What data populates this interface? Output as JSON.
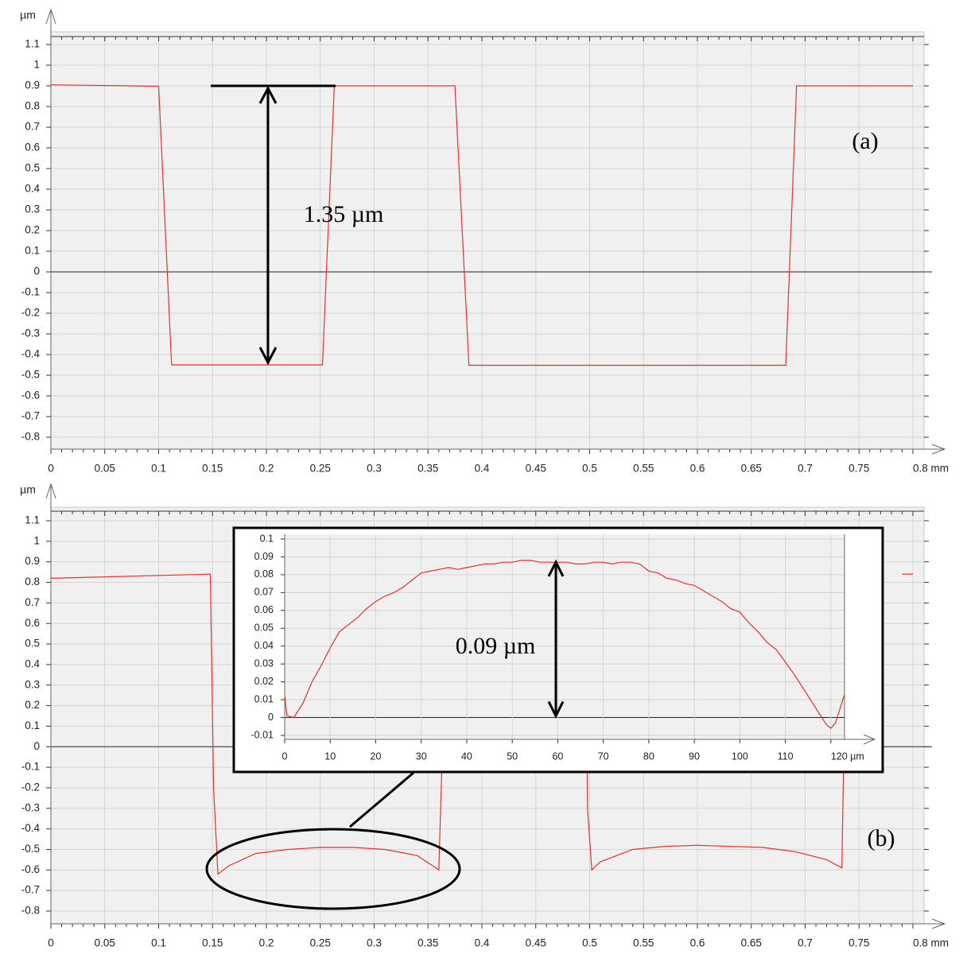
{
  "chart_data": [
    {
      "type": "line",
      "panel_label": "(a)",
      "y_unit": "µm",
      "x_unit": "mm",
      "xlim": [
        0,
        0.8
      ],
      "ylim": [
        -0.8,
        1.1
      ],
      "x_ticks": [
        "0",
        "0.05",
        "0.1",
        "0.15",
        "0.2",
        "0.25",
        "0.3",
        "0.35",
        "0.4",
        "0.45",
        "0.5",
        "0.55",
        "0.6",
        "0.65",
        "0.7",
        "0.75",
        "0.8 mm"
      ],
      "y_ticks": [
        "1.1",
        "1",
        "0.9",
        "0.8",
        "0.7",
        "0.6",
        "0.5",
        "0.4",
        "0.3",
        "0.2",
        "0.1",
        "0",
        "-0.1",
        "-0.2",
        "-0.3",
        "-0.4",
        "-0.5",
        "-0.6",
        "-0.7",
        "-0.8"
      ],
      "grid": true,
      "annotation": "1.35 µm",
      "series": [
        {
          "x": [
            0,
            0.1,
            0.112,
            0.252,
            0.263,
            0.375,
            0.388,
            0.682,
            0.692,
            0.8
          ],
          "y": [
            0.905,
            0.898,
            -0.45,
            -0.45,
            0.9,
            0.9,
            -0.452,
            -0.452,
            0.9,
            0.9
          ]
        }
      ],
      "colors": {
        "line": "#e8302a"
      }
    },
    {
      "type": "line",
      "panel_label": "(b)",
      "y_unit": "µm",
      "x_unit": "mm",
      "xlim": [
        0,
        0.8
      ],
      "ylim": [
        -0.8,
        1.1
      ],
      "x_ticks": [
        "0",
        "0.05",
        "0.1",
        "0.15",
        "0.2",
        "0.25",
        "0.3",
        "0.35",
        "0.4",
        "0.45",
        "0.5",
        "0.55",
        "0.6",
        "0.65",
        "0.7",
        "0.75",
        "0.8 mm"
      ],
      "y_ticks": [
        "1.1",
        "1",
        "0.9",
        "0.8",
        "0.7",
        "0.6",
        "0.5",
        "0.4",
        "0.3",
        "0.2",
        "0.1",
        "0",
        "-0.1",
        "-0.2",
        "-0.3",
        "-0.4",
        "-0.5",
        "-0.6",
        "-0.7",
        "-0.8"
      ],
      "grid": true,
      "series": [
        {
          "x": [
            0,
            0.148,
            0.151,
            0.155,
            0.165,
            0.19,
            0.22,
            0.25,
            0.28,
            0.31,
            0.34,
            0.36,
            0.364,
            0.366
          ],
          "y": [
            0.82,
            0.84,
            -0.2,
            -0.62,
            -0.58,
            -0.52,
            -0.5,
            -0.49,
            -0.49,
            -0.5,
            -0.53,
            -0.6,
            0.1,
            0.84
          ]
        },
        {
          "x": [
            0.496,
            0.498,
            0.502,
            0.51,
            0.54,
            0.57,
            0.6,
            0.63,
            0.66,
            0.69,
            0.72,
            0.734,
            0.737
          ],
          "y": [
            0.84,
            -0.3,
            -0.6,
            -0.56,
            -0.5,
            -0.485,
            -0.48,
            -0.485,
            -0.49,
            -0.51,
            -0.55,
            -0.59,
            0.3
          ]
        },
        {
          "x": [
            0.79,
            0.8
          ],
          "y": [
            0.84,
            0.84
          ]
        }
      ],
      "colors": {
        "line": "#e8302a"
      }
    },
    {
      "type": "line",
      "role": "inset",
      "y_unit": "µm",
      "x_unit": "µm",
      "xlim": [
        0,
        123
      ],
      "ylim": [
        -0.01,
        0.1
      ],
      "x_ticks": [
        "0",
        "10",
        "20",
        "30",
        "40",
        "50",
        "60",
        "70",
        "80",
        "90",
        "100",
        "110",
        "120 µm"
      ],
      "y_ticks": [
        "0.1",
        "0.09",
        "0.08",
        "0.07",
        "0.06",
        "0.05",
        "0.04",
        "0.03",
        "0.02",
        "0.01",
        "0",
        "-0.01"
      ],
      "grid": true,
      "annotation": "0.09 µm",
      "series": [
        {
          "x": [
            0,
            0.5,
            2,
            4,
            6,
            8,
            10,
            12,
            14,
            16,
            18,
            20,
            22,
            24,
            26,
            28,
            30,
            32,
            34,
            36,
            38,
            40,
            42,
            44,
            46,
            48,
            50,
            52,
            54,
            56,
            58,
            60,
            62,
            64,
            66,
            68,
            70,
            72,
            74,
            76,
            78,
            80,
            82,
            84,
            86,
            88,
            90,
            92,
            94,
            96,
            98,
            100,
            102,
            104,
            106,
            108,
            110,
            112,
            114,
            116,
            118,
            119,
            120,
            121,
            122,
            123
          ],
          "y": [
            0.012,
            0.001,
            0.0,
            0.008,
            0.02,
            0.029,
            0.039,
            0.048,
            0.052,
            0.056,
            0.061,
            0.065,
            0.068,
            0.07,
            0.073,
            0.077,
            0.081,
            0.082,
            0.083,
            0.084,
            0.083,
            0.084,
            0.085,
            0.086,
            0.086,
            0.087,
            0.087,
            0.088,
            0.088,
            0.087,
            0.087,
            0.087,
            0.087,
            0.086,
            0.086,
            0.087,
            0.087,
            0.086,
            0.087,
            0.087,
            0.086,
            0.082,
            0.081,
            0.078,
            0.077,
            0.075,
            0.074,
            0.071,
            0.068,
            0.065,
            0.061,
            0.059,
            0.053,
            0.048,
            0.042,
            0.038,
            0.031,
            0.024,
            0.016,
            0.008,
            0.0,
            -0.004,
            -0.006,
            -0.003,
            0.005,
            0.013
          ]
        }
      ],
      "colors": {
        "line": "#e8302a"
      }
    }
  ]
}
